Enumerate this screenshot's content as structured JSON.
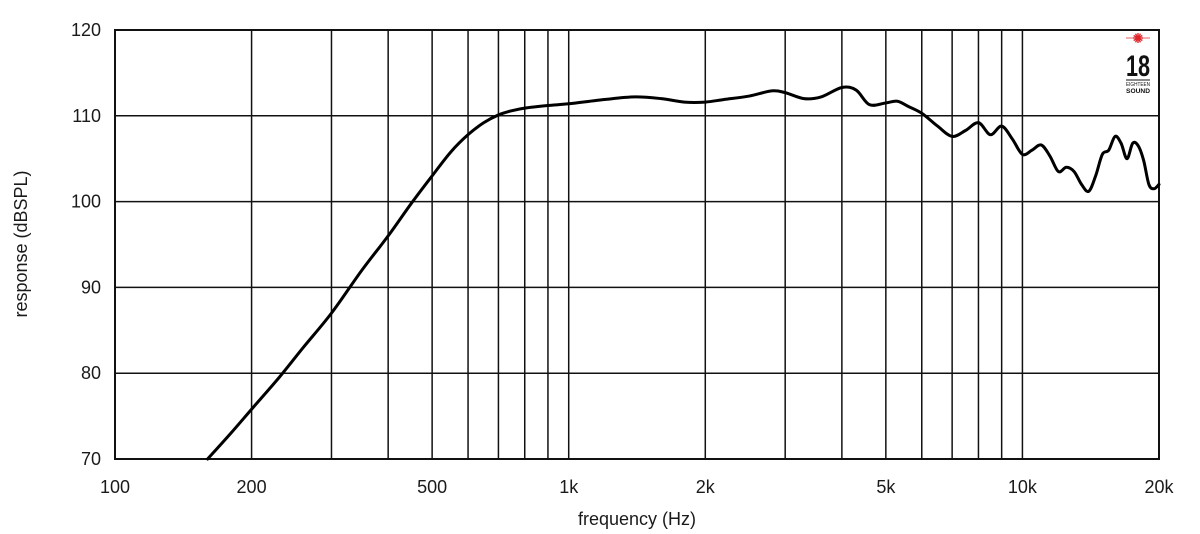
{
  "chart_data": {
    "type": "line",
    "xscale": "log",
    "xlabel": "frequency (Hz)",
    "ylabel": "response (dBSPL)",
    "xlim": [
      100,
      20000
    ],
    "ylim": [
      70,
      120
    ],
    "grid": true,
    "x_ticks": [
      {
        "value": 100,
        "label": "100"
      },
      {
        "value": 200,
        "label": "200"
      },
      {
        "value": 500,
        "label": "500"
      },
      {
        "value": 1000,
        "label": "1k"
      },
      {
        "value": 2000,
        "label": "2k"
      },
      {
        "value": 5000,
        "label": "5k"
      },
      {
        "value": 10000,
        "label": "10k"
      },
      {
        "value": 20000,
        "label": "20k"
      }
    ],
    "x_minor_grid": [
      300,
      400,
      600,
      700,
      800,
      900,
      3000,
      4000,
      6000,
      7000,
      8000,
      9000
    ],
    "y_ticks": [
      {
        "value": 70,
        "label": "70"
      },
      {
        "value": 80,
        "label": "80"
      },
      {
        "value": 90,
        "label": "90"
      },
      {
        "value": 100,
        "label": "100"
      },
      {
        "value": 110,
        "label": "110"
      },
      {
        "value": 120,
        "label": "120"
      }
    ],
    "series": [
      {
        "x": [
          160,
          180,
          200,
          230,
          260,
          300,
          350,
          400,
          450,
          500,
          550,
          600,
          650,
          700,
          750,
          800,
          900,
          1000,
          1200,
          1400,
          1600,
          1800,
          2000,
          2200,
          2500,
          2800,
          3000,
          3300,
          3600,
          4000,
          4300,
          4600,
          5000,
          5300,
          5600,
          6000,
          6500,
          7000,
          7500,
          8000,
          8500,
          9000,
          9500,
          10000,
          10500,
          11000,
          11500,
          12000,
          12500,
          13000,
          13500,
          14000,
          14500,
          15000,
          15500,
          16000,
          16500,
          17000,
          17500,
          18000,
          18500,
          19000,
          19500,
          20000
        ],
        "y": [
          70,
          73,
          75.8,
          79.5,
          83,
          87,
          92,
          96,
          99.8,
          103,
          105.8,
          107.8,
          109.2,
          110.1,
          110.6,
          110.9,
          111.2,
          111.4,
          111.9,
          112.2,
          112.0,
          111.6,
          111.6,
          111.9,
          112.3,
          112.9,
          112.7,
          112.0,
          112.2,
          113.3,
          113.0,
          111.3,
          111.5,
          111.7,
          111.1,
          110.3,
          108.8,
          107.6,
          108.3,
          109.2,
          107.8,
          108.8,
          107.3,
          105.5,
          106.0,
          106.6,
          105.3,
          103.5,
          104.0,
          103.5,
          102.0,
          101.2,
          103.0,
          105.5,
          106.0,
          107.6,
          106.8,
          105.0,
          106.8,
          106.5,
          104.8,
          102.0,
          101.5,
          102.0
        ]
      }
    ]
  },
  "logo": {
    "number": "18",
    "line1": "EIGHTEEN",
    "line2": "SOUND",
    "accent_color": "#e0262a"
  }
}
